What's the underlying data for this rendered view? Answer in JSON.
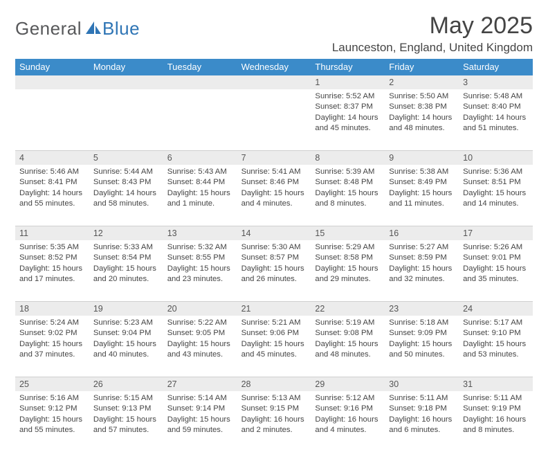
{
  "logo": {
    "text1": "General",
    "text2": "Blue"
  },
  "title": "May 2025",
  "location": "Launceston, England, United Kingdom",
  "colors": {
    "header_bg": "#3b8bc9",
    "header_text": "#ffffff",
    "daynum_bg": "#ececec",
    "border": "#cfcfcf",
    "body_text": "#444444",
    "logo_gray": "#57585a",
    "logo_blue": "#2f75b5"
  },
  "dow": [
    "Sunday",
    "Monday",
    "Tuesday",
    "Wednesday",
    "Thursday",
    "Friday",
    "Saturday"
  ],
  "weeks": [
    [
      null,
      null,
      null,
      null,
      {
        "n": "1",
        "sr": "Sunrise: 5:52 AM",
        "ss": "Sunset: 8:37 PM",
        "d1": "Daylight: 14 hours",
        "d2": "and 45 minutes."
      },
      {
        "n": "2",
        "sr": "Sunrise: 5:50 AM",
        "ss": "Sunset: 8:38 PM",
        "d1": "Daylight: 14 hours",
        "d2": "and 48 minutes."
      },
      {
        "n": "3",
        "sr": "Sunrise: 5:48 AM",
        "ss": "Sunset: 8:40 PM",
        "d1": "Daylight: 14 hours",
        "d2": "and 51 minutes."
      }
    ],
    [
      {
        "n": "4",
        "sr": "Sunrise: 5:46 AM",
        "ss": "Sunset: 8:41 PM",
        "d1": "Daylight: 14 hours",
        "d2": "and 55 minutes."
      },
      {
        "n": "5",
        "sr": "Sunrise: 5:44 AM",
        "ss": "Sunset: 8:43 PM",
        "d1": "Daylight: 14 hours",
        "d2": "and 58 minutes."
      },
      {
        "n": "6",
        "sr": "Sunrise: 5:43 AM",
        "ss": "Sunset: 8:44 PM",
        "d1": "Daylight: 15 hours",
        "d2": "and 1 minute."
      },
      {
        "n": "7",
        "sr": "Sunrise: 5:41 AM",
        "ss": "Sunset: 8:46 PM",
        "d1": "Daylight: 15 hours",
        "d2": "and 4 minutes."
      },
      {
        "n": "8",
        "sr": "Sunrise: 5:39 AM",
        "ss": "Sunset: 8:48 PM",
        "d1": "Daylight: 15 hours",
        "d2": "and 8 minutes."
      },
      {
        "n": "9",
        "sr": "Sunrise: 5:38 AM",
        "ss": "Sunset: 8:49 PM",
        "d1": "Daylight: 15 hours",
        "d2": "and 11 minutes."
      },
      {
        "n": "10",
        "sr": "Sunrise: 5:36 AM",
        "ss": "Sunset: 8:51 PM",
        "d1": "Daylight: 15 hours",
        "d2": "and 14 minutes."
      }
    ],
    [
      {
        "n": "11",
        "sr": "Sunrise: 5:35 AM",
        "ss": "Sunset: 8:52 PM",
        "d1": "Daylight: 15 hours",
        "d2": "and 17 minutes."
      },
      {
        "n": "12",
        "sr": "Sunrise: 5:33 AM",
        "ss": "Sunset: 8:54 PM",
        "d1": "Daylight: 15 hours",
        "d2": "and 20 minutes."
      },
      {
        "n": "13",
        "sr": "Sunrise: 5:32 AM",
        "ss": "Sunset: 8:55 PM",
        "d1": "Daylight: 15 hours",
        "d2": "and 23 minutes."
      },
      {
        "n": "14",
        "sr": "Sunrise: 5:30 AM",
        "ss": "Sunset: 8:57 PM",
        "d1": "Daylight: 15 hours",
        "d2": "and 26 minutes."
      },
      {
        "n": "15",
        "sr": "Sunrise: 5:29 AM",
        "ss": "Sunset: 8:58 PM",
        "d1": "Daylight: 15 hours",
        "d2": "and 29 minutes."
      },
      {
        "n": "16",
        "sr": "Sunrise: 5:27 AM",
        "ss": "Sunset: 8:59 PM",
        "d1": "Daylight: 15 hours",
        "d2": "and 32 minutes."
      },
      {
        "n": "17",
        "sr": "Sunrise: 5:26 AM",
        "ss": "Sunset: 9:01 PM",
        "d1": "Daylight: 15 hours",
        "d2": "and 35 minutes."
      }
    ],
    [
      {
        "n": "18",
        "sr": "Sunrise: 5:24 AM",
        "ss": "Sunset: 9:02 PM",
        "d1": "Daylight: 15 hours",
        "d2": "and 37 minutes."
      },
      {
        "n": "19",
        "sr": "Sunrise: 5:23 AM",
        "ss": "Sunset: 9:04 PM",
        "d1": "Daylight: 15 hours",
        "d2": "and 40 minutes."
      },
      {
        "n": "20",
        "sr": "Sunrise: 5:22 AM",
        "ss": "Sunset: 9:05 PM",
        "d1": "Daylight: 15 hours",
        "d2": "and 43 minutes."
      },
      {
        "n": "21",
        "sr": "Sunrise: 5:21 AM",
        "ss": "Sunset: 9:06 PM",
        "d1": "Daylight: 15 hours",
        "d2": "and 45 minutes."
      },
      {
        "n": "22",
        "sr": "Sunrise: 5:19 AM",
        "ss": "Sunset: 9:08 PM",
        "d1": "Daylight: 15 hours",
        "d2": "and 48 minutes."
      },
      {
        "n": "23",
        "sr": "Sunrise: 5:18 AM",
        "ss": "Sunset: 9:09 PM",
        "d1": "Daylight: 15 hours",
        "d2": "and 50 minutes."
      },
      {
        "n": "24",
        "sr": "Sunrise: 5:17 AM",
        "ss": "Sunset: 9:10 PM",
        "d1": "Daylight: 15 hours",
        "d2": "and 53 minutes."
      }
    ],
    [
      {
        "n": "25",
        "sr": "Sunrise: 5:16 AM",
        "ss": "Sunset: 9:12 PM",
        "d1": "Daylight: 15 hours",
        "d2": "and 55 minutes."
      },
      {
        "n": "26",
        "sr": "Sunrise: 5:15 AM",
        "ss": "Sunset: 9:13 PM",
        "d1": "Daylight: 15 hours",
        "d2": "and 57 minutes."
      },
      {
        "n": "27",
        "sr": "Sunrise: 5:14 AM",
        "ss": "Sunset: 9:14 PM",
        "d1": "Daylight: 15 hours",
        "d2": "and 59 minutes."
      },
      {
        "n": "28",
        "sr": "Sunrise: 5:13 AM",
        "ss": "Sunset: 9:15 PM",
        "d1": "Daylight: 16 hours",
        "d2": "and 2 minutes."
      },
      {
        "n": "29",
        "sr": "Sunrise: 5:12 AM",
        "ss": "Sunset: 9:16 PM",
        "d1": "Daylight: 16 hours",
        "d2": "and 4 minutes."
      },
      {
        "n": "30",
        "sr": "Sunrise: 5:11 AM",
        "ss": "Sunset: 9:18 PM",
        "d1": "Daylight: 16 hours",
        "d2": "and 6 minutes."
      },
      {
        "n": "31",
        "sr": "Sunrise: 5:11 AM",
        "ss": "Sunset: 9:19 PM",
        "d1": "Daylight: 16 hours",
        "d2": "and 8 minutes."
      }
    ]
  ]
}
